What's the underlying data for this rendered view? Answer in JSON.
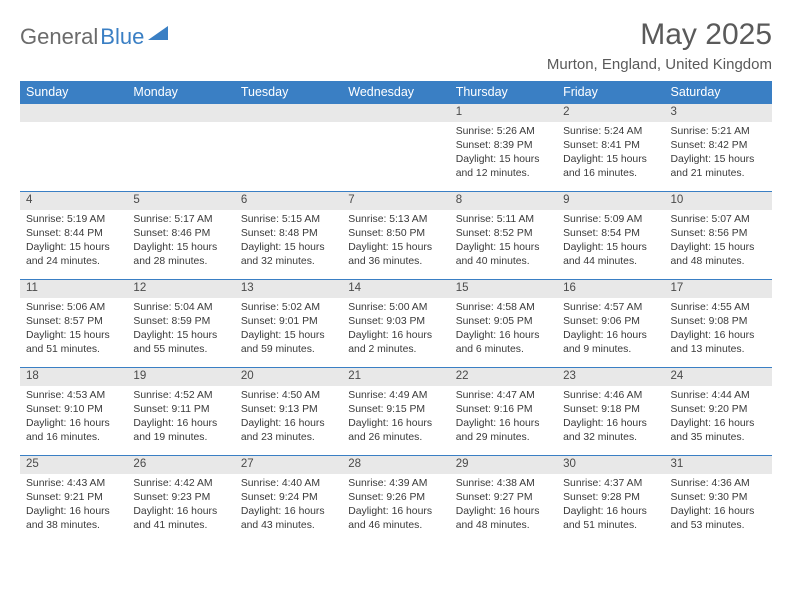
{
  "logo": {
    "part1": "General",
    "part2": "Blue"
  },
  "title": "May 2025",
  "location": "Murton, England, United Kingdom",
  "colors": {
    "header_bg": "#3a7fc4",
    "header_text": "#ffffff",
    "daynum_bg": "#e8e8e8",
    "border": "#3a7fc4",
    "text": "#3a3a3a",
    "title_text": "#5a5a5a"
  },
  "day_headers": [
    "Sunday",
    "Monday",
    "Tuesday",
    "Wednesday",
    "Thursday",
    "Friday",
    "Saturday"
  ],
  "weeks": [
    [
      null,
      null,
      null,
      null,
      {
        "n": "1",
        "sr": "5:26 AM",
        "ss": "8:39 PM",
        "dl": "15 hours and 12 minutes."
      },
      {
        "n": "2",
        "sr": "5:24 AM",
        "ss": "8:41 PM",
        "dl": "15 hours and 16 minutes."
      },
      {
        "n": "3",
        "sr": "5:21 AM",
        "ss": "8:42 PM",
        "dl": "15 hours and 21 minutes."
      }
    ],
    [
      {
        "n": "4",
        "sr": "5:19 AM",
        "ss": "8:44 PM",
        "dl": "15 hours and 24 minutes."
      },
      {
        "n": "5",
        "sr": "5:17 AM",
        "ss": "8:46 PM",
        "dl": "15 hours and 28 minutes."
      },
      {
        "n": "6",
        "sr": "5:15 AM",
        "ss": "8:48 PM",
        "dl": "15 hours and 32 minutes."
      },
      {
        "n": "7",
        "sr": "5:13 AM",
        "ss": "8:50 PM",
        "dl": "15 hours and 36 minutes."
      },
      {
        "n": "8",
        "sr": "5:11 AM",
        "ss": "8:52 PM",
        "dl": "15 hours and 40 minutes."
      },
      {
        "n": "9",
        "sr": "5:09 AM",
        "ss": "8:54 PM",
        "dl": "15 hours and 44 minutes."
      },
      {
        "n": "10",
        "sr": "5:07 AM",
        "ss": "8:56 PM",
        "dl": "15 hours and 48 minutes."
      }
    ],
    [
      {
        "n": "11",
        "sr": "5:06 AM",
        "ss": "8:57 PM",
        "dl": "15 hours and 51 minutes."
      },
      {
        "n": "12",
        "sr": "5:04 AM",
        "ss": "8:59 PM",
        "dl": "15 hours and 55 minutes."
      },
      {
        "n": "13",
        "sr": "5:02 AM",
        "ss": "9:01 PM",
        "dl": "15 hours and 59 minutes."
      },
      {
        "n": "14",
        "sr": "5:00 AM",
        "ss": "9:03 PM",
        "dl": "16 hours and 2 minutes."
      },
      {
        "n": "15",
        "sr": "4:58 AM",
        "ss": "9:05 PM",
        "dl": "16 hours and 6 minutes."
      },
      {
        "n": "16",
        "sr": "4:57 AM",
        "ss": "9:06 PM",
        "dl": "16 hours and 9 minutes."
      },
      {
        "n": "17",
        "sr": "4:55 AM",
        "ss": "9:08 PM",
        "dl": "16 hours and 13 minutes."
      }
    ],
    [
      {
        "n": "18",
        "sr": "4:53 AM",
        "ss": "9:10 PM",
        "dl": "16 hours and 16 minutes."
      },
      {
        "n": "19",
        "sr": "4:52 AM",
        "ss": "9:11 PM",
        "dl": "16 hours and 19 minutes."
      },
      {
        "n": "20",
        "sr": "4:50 AM",
        "ss": "9:13 PM",
        "dl": "16 hours and 23 minutes."
      },
      {
        "n": "21",
        "sr": "4:49 AM",
        "ss": "9:15 PM",
        "dl": "16 hours and 26 minutes."
      },
      {
        "n": "22",
        "sr": "4:47 AM",
        "ss": "9:16 PM",
        "dl": "16 hours and 29 minutes."
      },
      {
        "n": "23",
        "sr": "4:46 AM",
        "ss": "9:18 PM",
        "dl": "16 hours and 32 minutes."
      },
      {
        "n": "24",
        "sr": "4:44 AM",
        "ss": "9:20 PM",
        "dl": "16 hours and 35 minutes."
      }
    ],
    [
      {
        "n": "25",
        "sr": "4:43 AM",
        "ss": "9:21 PM",
        "dl": "16 hours and 38 minutes."
      },
      {
        "n": "26",
        "sr": "4:42 AM",
        "ss": "9:23 PM",
        "dl": "16 hours and 41 minutes."
      },
      {
        "n": "27",
        "sr": "4:40 AM",
        "ss": "9:24 PM",
        "dl": "16 hours and 43 minutes."
      },
      {
        "n": "28",
        "sr": "4:39 AM",
        "ss": "9:26 PM",
        "dl": "16 hours and 46 minutes."
      },
      {
        "n": "29",
        "sr": "4:38 AM",
        "ss": "9:27 PM",
        "dl": "16 hours and 48 minutes."
      },
      {
        "n": "30",
        "sr": "4:37 AM",
        "ss": "9:28 PM",
        "dl": "16 hours and 51 minutes."
      },
      {
        "n": "31",
        "sr": "4:36 AM",
        "ss": "9:30 PM",
        "dl": "16 hours and 53 minutes."
      }
    ]
  ],
  "labels": {
    "sunrise": "Sunrise: ",
    "sunset": "Sunset: ",
    "daylight": "Daylight: "
  }
}
